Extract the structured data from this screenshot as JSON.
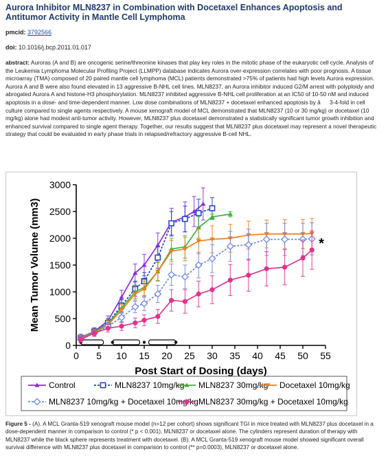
{
  "article": {
    "title": "Aurora Inhibitor MLN8237 in Combination with Docetaxel Enhances Apoptosis and Antitumor Activity in Mantle Cell Lymphoma",
    "pmcid_label": "pmcid:",
    "pmcid_value": "3792566",
    "doi_label": "doi:",
    "doi_value": "10.1016/j.bcp.2011.01.017",
    "abstract_label": "abstract:",
    "abstract_text": "Auroras (A and B) are oncogenic serine/threonine kinases that play key roles in the mitotic phase of the eukaryotic cell cycle. Analysis of the Leukemia Lymphoma Molecular Profiling Project (LLMPP) database indicates Aurora over-expression correlates with poor prognosis. A tissue microarray (TMA) composed of 20 paired mantle cell lymphoma (MCL) patients demonstrated >75% of patients had high levels Aurora expression. Aurora A and B were also found elevated in 13 aggressive B-NHL cell lines. MLN8237, an Aurora inhibitor induced G2/M arrest with polyploidy and abrogated Aurora A and histone-H3 phosphorylation. MLN8237 inhibited aggressive B-NHL cell proliferation at an IC50 of 10-50 nM and induced apoptosis in a dose- and time-dependent manner. Low dose combinations of MLN8237 + docetaxel enhanced apoptosis by â3-4-fold in cell culture compared to single agents respectively. A mouse xenograft model of MCL demonstrated that MLN8237 (10 or 30 mg/kg) or docetaxel (10 mg/kg) alone had modest anti-tumor activity. However, MLN8237 plus docetaxel demonstrated a statistically significant tumor growth inhibition and enhanced survival compared to single agent therapy. Together, our results suggest that MLN8237 plus docetaxel may represent a novel therapeutic strategy that could be evaluated in early phase trials in relapsed/refractory aggressive B-cell NHL.",
    "caption_label": "Figure 5 -",
    "caption_text": "(A). A MCL Granta-519 xenograft mouse model (n=12 per cohort) shows significant TGI in mice treated with MLN8237 plus docetaxel in a dose-dependent manner in comparison to control (* p < 0.001), MLN8237 or docetaxel alone. The cylinders represent duration of therapy with MLN8237 while the black sphere represents treatment with docetaxel. (B). A MCL Granta-519 xenograft mouse model showed significant overall survival difference with MLN8237 plus docetaxel in comparison to control (** p=0.0003), MLN8237 or docetaxel alone."
  },
  "chart_data": {
    "type": "line",
    "xlabel": "Post Start of Dosing (days)",
    "ylabel": "Mean Tumor Volume (mm3)",
    "xlim": [
      0,
      55
    ],
    "ylim": [
      0,
      3000
    ],
    "xticks": [
      "0",
      "5",
      "10",
      "15",
      "20",
      "25",
      "30",
      "35",
      "40",
      "45",
      "50",
      "55"
    ],
    "yticks": [
      "0",
      "500",
      "1000",
      "1500",
      "2000",
      "2500",
      "3000"
    ],
    "annotation": "*",
    "legend_placement": "bottom",
    "series": [
      {
        "name": "Control",
        "color": "#8a2be2",
        "marker": "triangle-up",
        "dash": "solid",
        "x": [
          1,
          4,
          7,
          10,
          13,
          15,
          18,
          21,
          24,
          26,
          28
        ],
        "y": [
          150,
          260,
          460,
          900,
          1350,
          1500,
          1870,
          2300,
          2400,
          2500,
          2640
        ],
        "err": [
          60,
          70,
          90,
          130,
          170,
          200,
          230,
          260,
          280,
          280,
          300
        ]
      },
      {
        "name": "MLN8237 10mg/kg",
        "color": "#1e3cc8",
        "marker": "square",
        "dash": "dotted",
        "x": [
          1,
          4,
          7,
          10,
          13,
          15,
          18,
          21,
          24,
          27,
          30
        ],
        "y": [
          140,
          260,
          420,
          740,
          1060,
          1200,
          1640,
          2280,
          2360,
          2470,
          2560
        ],
        "err": [
          50,
          60,
          80,
          110,
          140,
          160,
          200,
          220,
          240,
          260,
          200
        ]
      },
      {
        "name": "MLN8237 30mg/kg",
        "color": "#3cb43c",
        "marker": "triangle-up",
        "dash": "solid",
        "x": [
          1,
          4,
          7,
          10,
          13,
          15,
          18,
          21,
          24,
          27,
          30,
          34
        ],
        "y": [
          140,
          250,
          410,
          700,
          1000,
          1080,
          1380,
          1800,
          1840,
          2200,
          2400,
          2450
        ],
        "err": [
          50,
          60,
          80,
          100,
          130,
          150,
          170,
          200,
          210,
          200,
          50,
          50
        ]
      },
      {
        "name": "Docetaxel 10mg/kg",
        "color": "#ee7d1c",
        "marker": "triangle-down",
        "dash": "solid",
        "x": [
          1,
          4,
          7,
          10,
          13,
          15,
          18,
          21,
          24,
          27,
          30,
          34,
          38,
          42,
          46,
          50,
          52
        ],
        "y": [
          130,
          240,
          380,
          660,
          960,
          1050,
          1380,
          1760,
          1800,
          1950,
          1980,
          2000,
          2060,
          2080,
          2080,
          2080,
          2090
        ],
        "err": [
          50,
          60,
          80,
          100,
          130,
          150,
          180,
          200,
          220,
          240,
          250,
          260,
          260,
          260,
          270,
          270,
          280
        ]
      },
      {
        "name": "MLN8237 10mg/kg + Docetaxel 10mg/kg",
        "color": "#6f86e2",
        "marker": "diamond",
        "dash": "dotted",
        "x": [
          1,
          4,
          7,
          10,
          13,
          15,
          18,
          21,
          24,
          27,
          30,
          34,
          38,
          42,
          46,
          50,
          52
        ],
        "y": [
          120,
          230,
          360,
          520,
          720,
          780,
          960,
          1320,
          1280,
          1500,
          1620,
          1850,
          1880,
          1980,
          1980,
          1980,
          1990
        ],
        "err": [
          50,
          60,
          70,
          90,
          110,
          130,
          160,
          200,
          220,
          240,
          260,
          280,
          290,
          300,
          300,
          300,
          300
        ]
      },
      {
        "name": "MLN8237 30mg/kg + Docetaxel 10mg/kg",
        "color": "#e0338c",
        "marker": "circle",
        "dash": "solid",
        "x": [
          1,
          4,
          7,
          10,
          13,
          15,
          18,
          21,
          24,
          27,
          30,
          34,
          38,
          42,
          46,
          50,
          52
        ],
        "y": [
          110,
          230,
          320,
          360,
          420,
          470,
          540,
          840,
          820,
          960,
          1040,
          1220,
          1310,
          1430,
          1460,
          1630,
          1780
        ],
        "err": [
          50,
          60,
          70,
          80,
          90,
          100,
          130,
          200,
          220,
          240,
          260,
          290,
          300,
          320,
          330,
          340,
          360
        ]
      }
    ],
    "therapy_cylinders": [
      [
        1,
        6
      ],
      [
        8,
        14
      ],
      [
        16,
        22
      ]
    ],
    "docetaxel_doses": [
      1,
      8,
      15,
      22
    ]
  }
}
